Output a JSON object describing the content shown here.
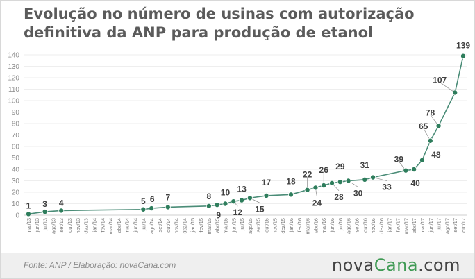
{
  "title": "Evolução no número de usinas com autorização definitiva da ANP para produção de etanol",
  "source": "Fonte: ANP / Elaboração: novaCana.com",
  "logo": {
    "part1": "nova",
    "part2": "Cana",
    "part3": ".com"
  },
  "colors": {
    "line": "#4a8c77",
    "point": "#2e7d5c",
    "logo_accent": "#3f9a54"
  },
  "chart_data": {
    "type": "line",
    "ylim": [
      0,
      140
    ],
    "yticks": [
      0,
      10,
      20,
      30,
      40,
      50,
      60,
      70,
      80,
      90,
      100,
      110,
      120,
      130,
      140
    ],
    "grid": true,
    "categories": [
      "mai/13",
      "jun/13",
      "jul/13",
      "ago/13",
      "set/13",
      "out/13",
      "nov/13",
      "dez/13",
      "jan/14",
      "fev/14",
      "mar/14",
      "abr/14",
      "mai/14",
      "jun/14",
      "jul/14",
      "ago/14",
      "set/14",
      "out/14",
      "nov/14",
      "dez/14",
      "jan/15",
      "fev/15",
      "mar/15",
      "abr/15",
      "mai/15",
      "jun/15",
      "jul/15",
      "ago/15",
      "set/15",
      "out/15",
      "nov/15",
      "dez/15",
      "jan/16",
      "fev/16",
      "mar/16",
      "abr/16",
      "mai/16",
      "jun/16",
      "jul/16",
      "ago/16",
      "set/16",
      "out/16",
      "nov/16",
      "dez/16",
      "jan/17",
      "fev/17",
      "mar/17",
      "abr/17",
      "mai/17",
      "jun/17",
      "jul/17",
      "ago/17",
      "set/17",
      "out/17"
    ],
    "series": [
      {
        "points": [
          {
            "x": "mai/13",
            "y": 1
          },
          {
            "x": "jul/13",
            "y": 3
          },
          {
            "x": "set/13",
            "y": 4
          },
          {
            "x": "jul/14",
            "y": 5
          },
          {
            "x": "ago/14",
            "y": 6
          },
          {
            "x": "out/14",
            "y": 7
          },
          {
            "x": "mar/15",
            "y": 8
          },
          {
            "x": "abr/15",
            "y": 9
          },
          {
            "x": "mai/15",
            "y": 10
          },
          {
            "x": "jun/15",
            "y": 12
          },
          {
            "x": "jul/15",
            "y": 13
          },
          {
            "x": "ago/15",
            "y": 15
          },
          {
            "x": "out/15",
            "y": 17
          },
          {
            "x": "jan/16",
            "y": 18
          },
          {
            "x": "mar/16",
            "y": 22
          },
          {
            "x": "abr/16",
            "y": 24
          },
          {
            "x": "mai/16",
            "y": 26
          },
          {
            "x": "jun/16",
            "y": 28
          },
          {
            "x": "jul/16",
            "y": 29
          },
          {
            "x": "ago/16",
            "y": 30
          },
          {
            "x": "out/16",
            "y": 31
          },
          {
            "x": "nov/16",
            "y": 33
          },
          {
            "x": "mar/17",
            "y": 39
          },
          {
            "x": "abr/17",
            "y": 40
          },
          {
            "x": "mai/17",
            "y": 48
          },
          {
            "x": "jun/17",
            "y": 65
          },
          {
            "x": "jul/17",
            "y": 78
          },
          {
            "x": "set/17",
            "y": 107
          },
          {
            "x": "out/17",
            "y": 139
          }
        ]
      }
    ]
  }
}
